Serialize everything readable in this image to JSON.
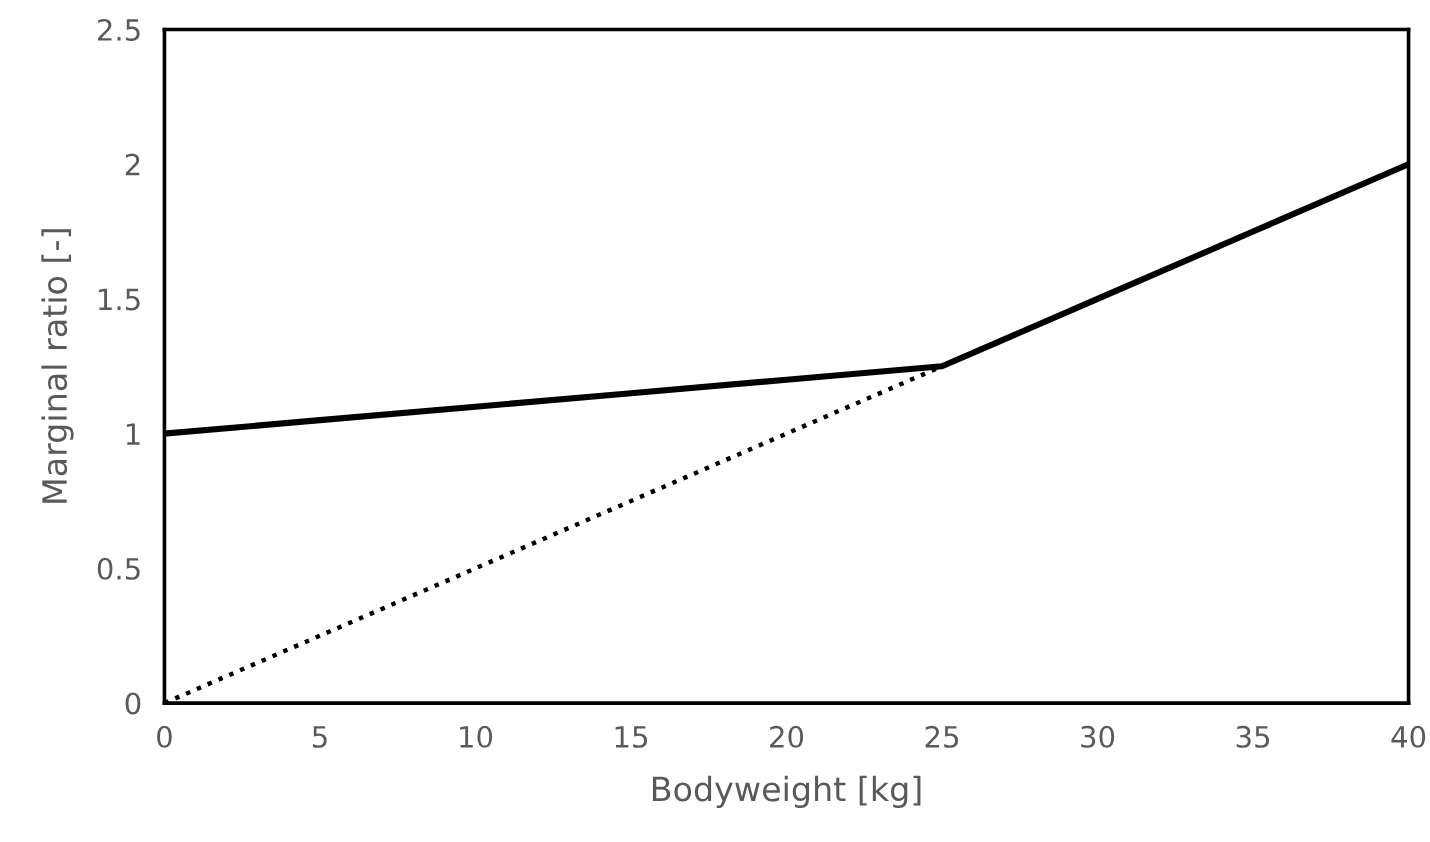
{
  "chart_data": {
    "type": "line",
    "xlabel": "Bodyweight [kg]",
    "ylabel": "Marginal ratio [-]",
    "series": [
      {
        "color": "#000000",
        "line_style": "solid",
        "x": [
          0,
          5,
          10,
          15,
          20,
          25,
          30,
          35,
          40
        ],
        "values": [
          1,
          1.05,
          1.1,
          1.15,
          1.2,
          1.25,
          1.5,
          1.75,
          2
        ]
      },
      {
        "color": "#000000",
        "line_style": "dotted",
        "x": [
          0,
          25
        ],
        "values": [
          0,
          1.25
        ]
      }
    ],
    "xlim": [
      0,
      40
    ],
    "xticks": [
      0,
      5,
      10,
      15,
      20,
      25,
      30,
      35,
      40
    ],
    "ylim": [
      0,
      2.5
    ],
    "yticks": [
      0,
      0.5,
      1,
      1.5,
      2,
      2.5
    ],
    "grid": false,
    "legend": false,
    "marker": "none"
  }
}
